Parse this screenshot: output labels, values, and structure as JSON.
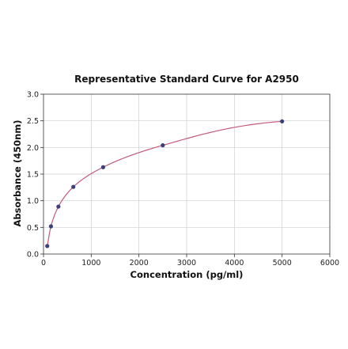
{
  "chart_data": {
    "type": "scatter",
    "title": "Representative Standard Curve for A2950",
    "xlabel": "Concentration (pg/ml)",
    "ylabel": "Absorbance (450nm)",
    "xlim": [
      0,
      6000
    ],
    "ylim": [
      0,
      3.0
    ],
    "xticks": [
      "0",
      "1000",
      "2000",
      "3000",
      "4000",
      "5000",
      "6000"
    ],
    "yticks": [
      "0.0",
      "0.5",
      "1.0",
      "1.5",
      "2.0",
      "2.5",
      "3.0"
    ],
    "grid": true,
    "legend": "none",
    "series": [
      {
        "x": [
          78.125,
          156.25,
          312.5,
          625,
          1250,
          2500,
          5000
        ],
        "y": [
          0.15,
          0.52,
          0.89,
          1.26,
          1.63,
          2.04,
          2.49
        ],
        "marker_color": "#3b3f7a",
        "fit_line": true,
        "line_color": "#c45a78"
      }
    ]
  }
}
